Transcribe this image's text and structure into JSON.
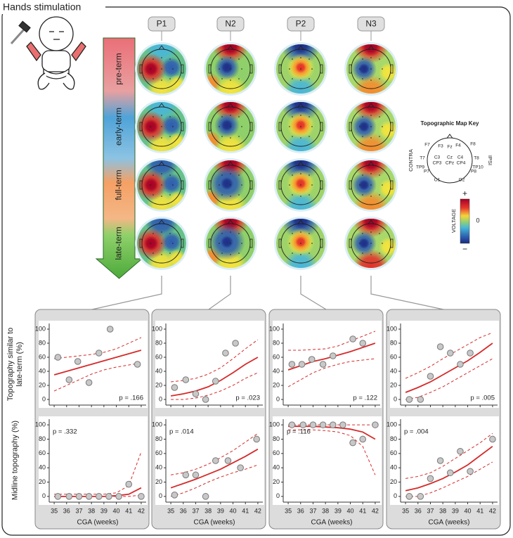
{
  "title": "Hands stimulation",
  "components": [
    "P1",
    "N2",
    "P2",
    "N3"
  ],
  "stages": [
    "pre-term",
    "early-term",
    "full-term",
    "late-term"
  ],
  "key": {
    "title": "Topographic Map Key",
    "electrodes": [
      "F7",
      "F3",
      "Fz",
      "F4",
      "F8",
      "T7",
      "C3",
      "Cz",
      "C4",
      "T8",
      "CP3",
      "CPz",
      "CP4",
      "TP9",
      "TP10",
      "P7",
      "P8",
      "O1",
      "O2"
    ],
    "contra": "CONTRA",
    "ipsi": "IPSI",
    "colorbar": {
      "max": "+",
      "mid": "0",
      "min": "−",
      "label": "VOLTAGE"
    }
  },
  "row_labels": [
    "Topography similar to late-term (%)",
    "Midline topography (%)"
  ],
  "chart_data": [
    {
      "type": "scatter",
      "annotation": "p = .166",
      "color": "#d62a2a",
      "point_color": "#c8c8c8",
      "x": [
        35.3,
        36.2,
        36.9,
        37.8,
        38.6,
        39.5,
        41.7
      ],
      "values": [
        60,
        28,
        54,
        24,
        66,
        100,
        50
      ],
      "fit_x": [
        35,
        36,
        37,
        38,
        39,
        40,
        41,
        42
      ],
      "fit": [
        35,
        40,
        45,
        50,
        55,
        60,
        65,
        70
      ],
      "ci_upper": [
        58,
        60,
        62,
        64,
        67,
        72,
        80,
        88
      ],
      "ci_lower": [
        12,
        20,
        28,
        36,
        42,
        46,
        49,
        52
      ],
      "xlim": [
        34.6,
        42.4
      ],
      "ylim": [
        -8,
        108
      ],
      "xticks": [
        35,
        36,
        37,
        38,
        39,
        40,
        41,
        42
      ],
      "yticks": [
        0,
        20,
        40,
        60,
        80,
        100
      ]
    },
    {
      "type": "scatter",
      "annotation": "p = .023",
      "color": "#d62a2a",
      "point_color": "#c8c8c8",
      "x": [
        35.3,
        36.2,
        37,
        37.8,
        38.6,
        39.4,
        40.2
      ],
      "values": [
        17,
        28,
        8,
        0,
        26,
        66,
        80
      ],
      "fit_x": [
        35,
        36,
        37,
        38,
        39,
        40,
        41,
        42
      ],
      "fit": [
        5,
        8,
        12,
        18,
        27,
        38,
        50,
        60
      ],
      "ci_upper": [
        25,
        27,
        30,
        36,
        45,
        58,
        72,
        85
      ],
      "ci_lower": [
        0,
        0,
        2,
        6,
        12,
        20,
        30,
        38
      ],
      "xlim": [
        34.6,
        42.4
      ],
      "ylim": [
        -8,
        108
      ],
      "xticks": [
        35,
        36,
        37,
        38,
        39,
        40,
        41,
        42
      ],
      "yticks": [
        0,
        20,
        40,
        60,
        80,
        100
      ]
    },
    {
      "type": "scatter",
      "annotation": "p = .122",
      "color": "#d62a2a",
      "point_color": "#c8c8c8",
      "x": [
        35.3,
        36.1,
        36.9,
        37.8,
        38.6,
        40.2,
        41
      ],
      "values": [
        50,
        50,
        57,
        50,
        62,
        86,
        80
      ],
      "fit_x": [
        35,
        36,
        37,
        38,
        39,
        40,
        41,
        42
      ],
      "fit": [
        42,
        48,
        54,
        58,
        63,
        68,
        74,
        80
      ],
      "ci_upper": [
        70,
        70,
        71,
        72,
        76,
        83,
        90,
        97
      ],
      "ci_lower": [
        18,
        28,
        38,
        45,
        50,
        54,
        56,
        58
      ],
      "xlim": [
        34.6,
        42.4
      ],
      "ylim": [
        -8,
        108
      ],
      "xticks": [
        35,
        36,
        37,
        38,
        39,
        40,
        41,
        42
      ],
      "yticks": [
        0,
        20,
        40,
        60,
        80,
        100
      ]
    },
    {
      "type": "scatter",
      "annotation": "p = .005",
      "color": "#d62a2a",
      "point_color": "#c8c8c8",
      "x": [
        35.3,
        36.2,
        37,
        37.8,
        38.6,
        39.4,
        40.2
      ],
      "values": [
        0,
        0,
        33,
        75,
        66,
        50,
        66
      ],
      "fit_x": [
        35,
        36,
        37,
        38,
        39,
        40,
        41,
        42
      ],
      "fit": [
        10,
        17,
        25,
        35,
        45,
        55,
        67,
        80
      ],
      "ci_upper": [
        30,
        38,
        47,
        58,
        68,
        78,
        88,
        95
      ],
      "ci_lower": [
        0,
        3,
        10,
        18,
        28,
        38,
        48,
        58
      ],
      "xlim": [
        34.6,
        42.4
      ],
      "ylim": [
        -8,
        108
      ],
      "xticks": [
        35,
        36,
        37,
        38,
        39,
        40,
        41,
        42
      ],
      "yticks": [
        0,
        20,
        40,
        60,
        80,
        100
      ]
    },
    {
      "type": "scatter",
      "annotation": "p = .332",
      "xlabel": "CGA (weeks)",
      "color": "#d62a2a",
      "point_color": "#c8c8c8",
      "x": [
        35.3,
        36.2,
        37,
        37.8,
        38.6,
        39.4,
        40.2,
        41,
        42
      ],
      "values": [
        0,
        0,
        0,
        0,
        0,
        0,
        0,
        17,
        0
      ],
      "fit_x": [
        35,
        36,
        37,
        38,
        39,
        40,
        41,
        42
      ],
      "fit": [
        0,
        0,
        0,
        0,
        0,
        1,
        3,
        12
      ],
      "ci_upper": [
        3,
        3,
        3,
        3,
        3,
        5,
        15,
        62
      ],
      "ci_lower": [
        0,
        0,
        0,
        0,
        0,
        0,
        0,
        2
      ],
      "xlim": [
        34.6,
        42.4
      ],
      "ylim": [
        -8,
        108
      ],
      "xticks": [
        35,
        36,
        37,
        38,
        39,
        40,
        41,
        42
      ],
      "yticks": [
        0,
        20,
        40,
        60,
        80,
        100
      ]
    },
    {
      "type": "scatter",
      "annotation": "p = .014",
      "xlabel": "CGA (weeks)",
      "color": "#d62a2a",
      "point_color": "#c8c8c8",
      "x": [
        35.3,
        36.2,
        37,
        37.8,
        38.6,
        39.6,
        40.6,
        41.9
      ],
      "values": [
        2,
        30,
        30,
        0,
        50,
        50,
        40,
        80
      ],
      "fit_x": [
        35,
        36,
        37,
        38,
        39,
        40,
        41,
        42
      ],
      "fit": [
        12,
        18,
        24,
        31,
        38,
        47,
        56,
        66
      ],
      "ci_upper": [
        30,
        33,
        38,
        45,
        54,
        64,
        76,
        88
      ],
      "ci_lower": [
        0,
        5,
        12,
        20,
        27,
        33,
        38,
        44
      ],
      "xlim": [
        34.6,
        42.4
      ],
      "ylim": [
        -8,
        108
      ],
      "xticks": [
        35,
        36,
        37,
        38,
        39,
        40,
        41,
        42
      ],
      "yticks": [
        0,
        20,
        40,
        60,
        80,
        100
      ]
    },
    {
      "type": "scatter",
      "annotation": "p = .116",
      "xlabel": "CGA (weeks)",
      "color": "#d62a2a",
      "point_color": "#c8c8c8",
      "x": [
        35.3,
        36.2,
        37,
        37.8,
        38.6,
        39.4,
        40.2,
        41,
        42
      ],
      "values": [
        100,
        100,
        100,
        100,
        100,
        100,
        75,
        80,
        100
      ],
      "fit_x": [
        35,
        36,
        37,
        38,
        39,
        40,
        41,
        42
      ],
      "fit": [
        98,
        98,
        98,
        97,
        96,
        94,
        90,
        80
      ],
      "ci_upper": [
        100,
        100,
        100,
        100,
        100,
        100,
        100,
        100
      ],
      "ci_lower": [
        93,
        93,
        93,
        92,
        90,
        85,
        70,
        30
      ],
      "xlim": [
        34.6,
        42.4
      ],
      "ylim": [
        -8,
        108
      ],
      "xticks": [
        35,
        36,
        37,
        38,
        39,
        40,
        41,
        42
      ],
      "yticks": [
        0,
        20,
        40,
        60,
        80,
        100
      ]
    },
    {
      "type": "scatter",
      "annotation": "p = .004",
      "xlabel": "CGA (weeks)",
      "color": "#d62a2a",
      "point_color": "#c8c8c8",
      "x": [
        35.3,
        36.2,
        37,
        37.8,
        38.6,
        39.4,
        40.2,
        42
      ],
      "values": [
        0,
        0,
        25,
        50,
        33,
        63,
        35,
        80
      ],
      "fit_x": [
        35,
        36,
        37,
        38,
        39,
        40,
        41,
        42
      ],
      "fit": [
        8,
        12,
        18,
        25,
        34,
        44,
        57,
        70
      ],
      "ci_upper": [
        25,
        28,
        33,
        42,
        53,
        64,
        75,
        88
      ],
      "ci_lower": [
        0,
        0,
        5,
        12,
        20,
        28,
        38,
        48
      ],
      "xlim": [
        34.6,
        42.4
      ],
      "ylim": [
        -8,
        108
      ],
      "xticks": [
        35,
        36,
        37,
        38,
        39,
        40,
        41,
        42
      ],
      "yticks": [
        0,
        20,
        40,
        60,
        80,
        100
      ]
    }
  ]
}
